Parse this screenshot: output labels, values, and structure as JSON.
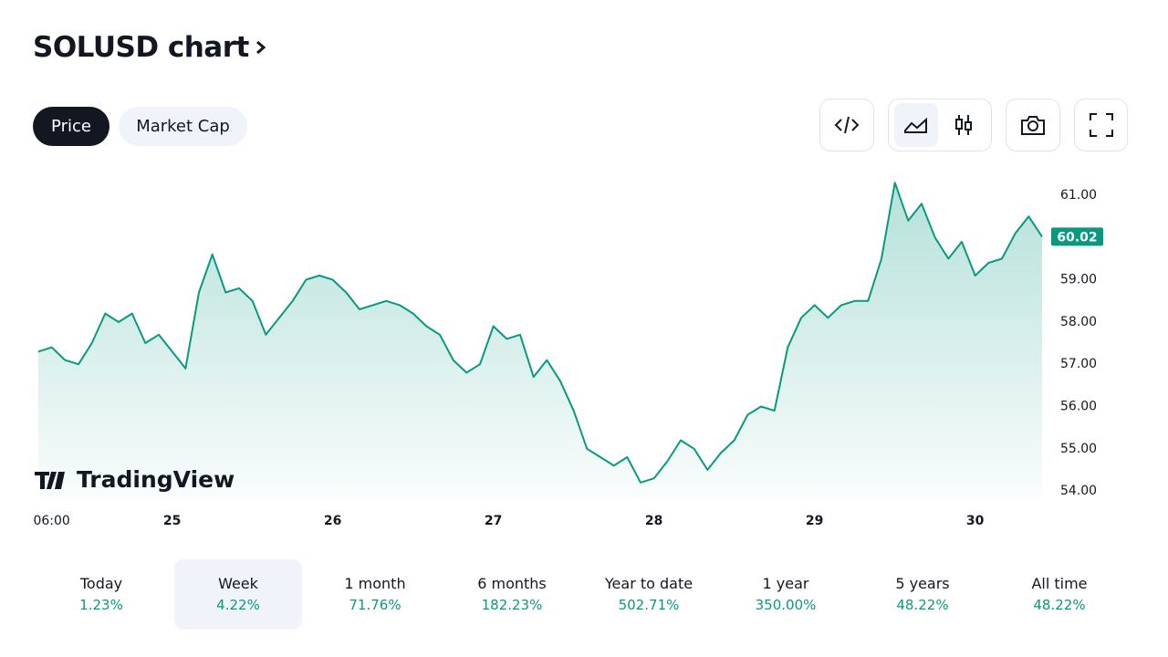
{
  "header": {
    "title": "SOLUSD chart"
  },
  "tabs": [
    "Price",
    "Market Cap"
  ],
  "watermark": "TradingView",
  "chart_data": {
    "type": "area",
    "color": "#089981",
    "grid": false,
    "categories": [
      null,
      "06:00",
      null,
      null,
      null,
      null,
      null,
      null,
      null,
      null,
      "25",
      null,
      null,
      null,
      null,
      null,
      null,
      null,
      null,
      null,
      null,
      null,
      "26",
      null,
      null,
      null,
      null,
      null,
      null,
      null,
      null,
      null,
      null,
      null,
      "27",
      null,
      null,
      null,
      null,
      null,
      null,
      null,
      null,
      null,
      null,
      null,
      "28",
      null,
      null,
      null,
      null,
      null,
      null,
      null,
      null,
      null,
      null,
      null,
      "29",
      null,
      null,
      null,
      null,
      null,
      null,
      null,
      null,
      null,
      null,
      null,
      "30",
      null,
      null,
      null,
      null,
      null
    ],
    "values": [
      57.3,
      57.4,
      57.1,
      57.0,
      57.5,
      58.2,
      58.0,
      58.2,
      57.5,
      57.7,
      57.3,
      56.9,
      58.7,
      59.6,
      58.7,
      58.8,
      58.5,
      57.7,
      58.1,
      58.5,
      59.0,
      59.1,
      59.0,
      58.7,
      58.3,
      58.4,
      58.5,
      58.4,
      58.2,
      57.9,
      57.7,
      57.1,
      56.8,
      57.0,
      57.9,
      57.6,
      57.7,
      56.7,
      57.1,
      56.6,
      55.9,
      55.0,
      54.8,
      54.6,
      54.8,
      54.2,
      54.3,
      54.7,
      55.2,
      55.0,
      54.5,
      54.9,
      55.2,
      55.8,
      56.0,
      55.9,
      57.4,
      58.1,
      58.4,
      58.1,
      58.4,
      58.5,
      58.5,
      59.5,
      61.3,
      60.4,
      60.8,
      60.0,
      59.5,
      59.9,
      59.1,
      59.4,
      59.5,
      60.1,
      60.5,
      60.02
    ],
    "ylim": [
      53.8,
      61.5
    ],
    "yticks": [
      {
        "value": 54,
        "label": "54.00"
      },
      {
        "value": 55,
        "label": "55.00"
      },
      {
        "value": 56,
        "label": "56.00"
      },
      {
        "value": 57,
        "label": "57.00"
      },
      {
        "value": 58,
        "label": "58.00"
      },
      {
        "value": 59,
        "label": "59.00"
      },
      {
        "value": 60,
        "label": "60.00"
      },
      {
        "value": 61,
        "label": "61.00"
      }
    ]
  },
  "periods": [
    {
      "label": "Today",
      "change": "1.23%"
    },
    {
      "label": "Week",
      "change": "4.22%"
    },
    {
      "label": "1 month",
      "change": "71.76%"
    },
    {
      "label": "6 months",
      "change": "182.23%"
    },
    {
      "label": "Year to date",
      "change": "502.71%"
    },
    {
      "label": "1 year",
      "change": "350.00%"
    },
    {
      "label": "5 years",
      "change": "48.22%"
    },
    {
      "label": "All time",
      "change": "48.22%"
    }
  ]
}
